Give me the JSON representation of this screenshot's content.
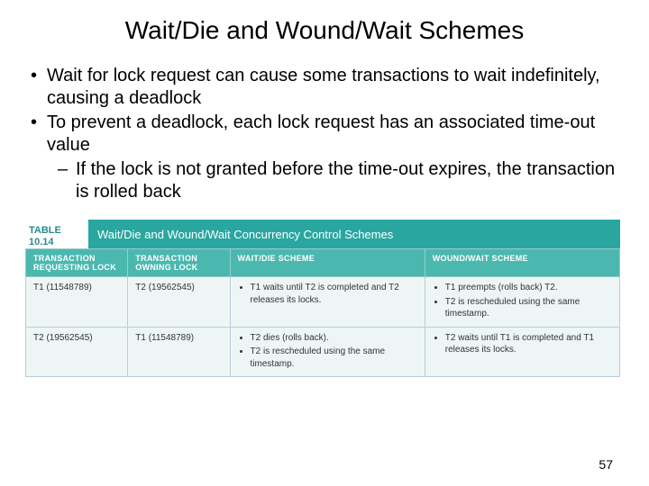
{
  "title": "Wait/Die and Wound/Wait Schemes",
  "bullets": {
    "b1": "Wait for lock request can cause some transactions to wait indefinitely, causing a deadlock",
    "b2": "To prevent a deadlock, each lock request has an associated time-out value",
    "sub1": "If the lock is not granted before the time-out expires, the transaction is rolled back"
  },
  "table": {
    "label_top": "TABLE",
    "label_num": "10.14",
    "caption": "Wait/Die and Wound/Wait Concurrency Control Schemes",
    "headers": {
      "h1": "TRANSACTION REQUESTING LOCK",
      "h2": "TRANSACTION OWNING LOCK",
      "h3": "WAIT/DIE SCHEME",
      "h4": "WOUND/WAIT SCHEME"
    },
    "rows": {
      "r1c1": "T1 (11548789)",
      "r1c2": "T2 (19562545)",
      "r1c3a": "T1 waits until T2 is completed and T2 releases its locks.",
      "r1c4a": "T1 preempts (rolls back) T2.",
      "r1c4b": "T2 is rescheduled using the same timestamp.",
      "r2c1": "T2 (19562545)",
      "r2c2": "T1 (11548789)",
      "r2c3a": "T2 dies (rolls back).",
      "r2c3b": "T2 is rescheduled using the same timestamp.",
      "r2c4a": "T2 waits until T1 is completed and T1 releases its locks."
    }
  },
  "page_number": "57",
  "colors": {
    "caption_bg": "#2aa6a0",
    "header_bg": "#4bb8b0",
    "cell_bg": "#eef6f5",
    "label_color": "#2a8a8a"
  }
}
